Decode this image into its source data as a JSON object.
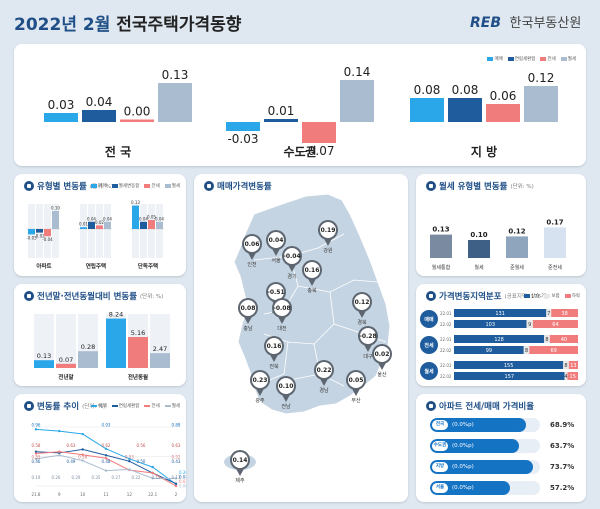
{
  "header": {
    "year_month": "2022년 2월",
    "title": "전국주택가격동향",
    "logo_mark": "REB",
    "logo_text": "한국부동산원"
  },
  "top": {
    "legend": [
      "매매",
      "연립세환합",
      "전세",
      "월세"
    ],
    "colors": [
      "#2aa7e8",
      "#1e5c9e",
      "#f07c7c",
      "#a9bcd0"
    ],
    "groups": [
      {
        "name": "전 국",
        "values": [
          0.03,
          0.04,
          0.0,
          0.13
        ],
        "labels": [
          "0.03",
          "0.04",
          "0.00",
          "0.13"
        ]
      },
      {
        "name": "수도권",
        "values": [
          -0.03,
          0.01,
          -0.07,
          0.14
        ],
        "labels": [
          "-0.03",
          "0.01",
          "-0.07",
          "0.14"
        ]
      },
      {
        "name": "지 방",
        "values": [
          0.08,
          0.08,
          0.06,
          0.12
        ],
        "labels": [
          "0.08",
          "0.08",
          "0.06",
          "0.12"
        ]
      }
    ]
  },
  "type_chart": {
    "title": "유형별 변동률",
    "unit": "(단위: %)",
    "legend": [
      "매매",
      "월세변동합",
      "전세",
      "월세"
    ],
    "groups": [
      {
        "name": "아파트",
        "labels": [
          "-0.03",
          "-0.02",
          "-0.04",
          "0.10"
        ],
        "values": [
          -0.03,
          -0.02,
          -0.04,
          0.1
        ]
      },
      {
        "name": "연립주택",
        "labels": [
          "0.01",
          "0.04",
          "0.02",
          "0.04"
        ],
        "values": [
          0.01,
          0.04,
          0.02,
          0.04
        ]
      },
      {
        "name": "단독주택",
        "labels": [
          "0.13",
          "0.04",
          "0.05",
          "0.04"
        ],
        "values": [
          0.13,
          0.04,
          0.05,
          0.04
        ]
      }
    ]
  },
  "prev_chart": {
    "title": "전년말·전년동월대비 변동률",
    "unit": "(단위: %)",
    "groups": [
      {
        "name": "전년말",
        "labels": [
          "0.13",
          "0.07",
          "0.28"
        ],
        "values": [
          0.13,
          0.07,
          0.28
        ]
      },
      {
        "name": "전년동월",
        "labels": [
          "8.24",
          "5.16",
          "2.47"
        ],
        "values": [
          8.24,
          5.16,
          2.47
        ]
      }
    ]
  },
  "trend_chart": {
    "title": "변동률 추이",
    "unit": "(단위: %)",
    "legend": [
      "매매",
      "연립세환합",
      "전세",
      "월세"
    ],
    "x": [
      "21.8",
      "9",
      "10",
      "11",
      "12",
      "22.1",
      "2"
    ],
    "series": [
      {
        "name": "매매",
        "values": [
          0.96,
          0.93,
          0.88,
          0.63,
          0.46,
          0.32,
          0.03
        ]
      },
      {
        "name": "연립세환합",
        "values": [
          0.58,
          0.56,
          0.62,
          0.52,
          0.42,
          0.22,
          0.04
        ]
      },
      {
        "name": "전세",
        "values": [
          0.55,
          0.58,
          0.53,
          0.47,
          0.27,
          0.22,
          0.0
        ]
      },
      {
        "name": "월세",
        "values": [
          0.46,
          0.52,
          0.43,
          0.26,
          0.28,
          0.13,
          0.13
        ]
      }
    ],
    "labels_top": [
      "0.96",
      "0.93",
      "0.88"
    ],
    "labels_2": [
      "0.58",
      "0.63",
      "0.62",
      "0.56",
      "0.63"
    ],
    "labels_3": [
      "0.55",
      "0.58",
      "0.53",
      "0.52"
    ],
    "labels_4": [
      "0.46",
      "0.49",
      "0.48",
      "0.50",
      "0.43"
    ],
    "labels_low": [
      "0.19",
      "0.26",
      "0.29",
      "0.35",
      "0.27",
      "0.22",
      "0.13",
      "0.13"
    ],
    "labels_end": [
      "0.20",
      "0.04",
      "0.03",
      "0.00"
    ]
  },
  "map": {
    "title": "매매가격변동률",
    "pins": [
      {
        "region": "인천",
        "value": "0.06"
      },
      {
        "region": "서울",
        "value": "0.04"
      },
      {
        "region": "경기",
        "value": "-0.04"
      },
      {
        "region": "강원",
        "value": "0.19"
      },
      {
        "region": "충북",
        "value": "0.16"
      },
      {
        "region": "세종",
        "value": "-0.51"
      },
      {
        "region": "충남",
        "value": "0.08"
      },
      {
        "region": "대전",
        "value": "-0.08"
      },
      {
        "region": "경북",
        "value": "0.12"
      },
      {
        "region": "대구",
        "value": "-0.28"
      },
      {
        "region": "전북",
        "value": "0.16"
      },
      {
        "region": "울산",
        "value": "0.02"
      },
      {
        "region": "경남",
        "value": "0.22"
      },
      {
        "region": "부산",
        "value": "0.05"
      },
      {
        "region": "광주",
        "value": "0.23"
      },
      {
        "region": "전남",
        "value": "0.10"
      },
      {
        "region": "제주",
        "value": "0.14"
      }
    ]
  },
  "rent_type": {
    "title": "월세 유형별 변동률",
    "unit": "(단위: %)",
    "items": [
      {
        "name": "월세통합",
        "value": 0.13,
        "label": "0.13"
      },
      {
        "name": "월세",
        "value": 0.1,
        "label": "0.10"
      },
      {
        "name": "준월세",
        "value": 0.12,
        "label": "0.12"
      },
      {
        "name": "준전세",
        "value": 0.17,
        "label": "0.17"
      }
    ]
  },
  "distribution": {
    "title": "가격변동지역분포",
    "unit": "(공표지역: 176개)",
    "legend": [
      "상승",
      "보합",
      "하락"
    ],
    "rows": [
      {
        "cat": "매매",
        "items": [
          {
            "ym": "22.01",
            "vals": [
              "131",
              "7",
              "38"
            ],
            "nums": [
              131,
              7,
              38
            ]
          },
          {
            "ym": "22.02",
            "vals": [
              "103",
              "9",
              "64"
            ],
            "nums": [
              103,
              9,
              64
            ]
          }
        ]
      },
      {
        "cat": "전세",
        "items": [
          {
            "ym": "22.01",
            "vals": [
              "128",
              "8",
              "40"
            ],
            "nums": [
              128,
              8,
              40
            ]
          },
          {
            "ym": "22.02",
            "vals": [
              "99",
              "8",
              "69"
            ],
            "nums": [
              99,
              8,
              69
            ]
          }
        ]
      },
      {
        "cat": "월세",
        "items": [
          {
            "ym": "22.01",
            "vals": [
              "155",
              "8",
              "13"
            ],
            "nums": [
              155,
              8,
              13
            ]
          },
          {
            "ym": "22.02",
            "vals": [
              "157",
              "4",
              "15"
            ],
            "nums": [
              157,
              4,
              15
            ]
          }
        ]
      }
    ]
  },
  "ratio": {
    "title": "아파트 전세/매매 가격비율",
    "items": [
      {
        "label": "전국",
        "change": "(0.0%p)",
        "value": "68.9%",
        "pct": 68.9
      },
      {
        "label": "수도권",
        "change": "(0.0%p)",
        "value": "63.7%",
        "pct": 63.7
      },
      {
        "label": "지방",
        "change": "(0.0%p)",
        "value": "73.7%",
        "pct": 73.7
      },
      {
        "label": "서울",
        "change": "(0.0%p)",
        "value": "57.2%",
        "pct": 57.2
      }
    ]
  }
}
